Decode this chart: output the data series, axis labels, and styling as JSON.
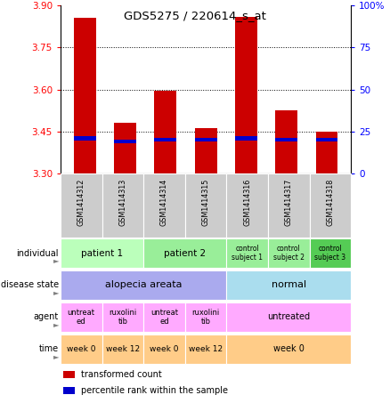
{
  "title": "GDS5275 / 220614_s_at",
  "samples": [
    "GSM1414312",
    "GSM1414313",
    "GSM1414314",
    "GSM1414315",
    "GSM1414316",
    "GSM1414317",
    "GSM1414318"
  ],
  "red_values": [
    3.855,
    3.48,
    3.595,
    3.462,
    3.86,
    3.525,
    3.45
  ],
  "blue_values": [
    21,
    19,
    20,
    20,
    21,
    20,
    20
  ],
  "ylim_left": [
    3.3,
    3.9
  ],
  "ylim_right": [
    0,
    100
  ],
  "yticks_left": [
    3.3,
    3.45,
    3.6,
    3.75,
    3.9
  ],
  "yticks_right": [
    0,
    25,
    50,
    75,
    100
  ],
  "ytick_labels_right": [
    "0",
    "25",
    "50",
    "75",
    "100%"
  ],
  "bar_width": 0.55,
  "bar_color": "#cc0000",
  "dot_color": "#0000cc",
  "bar_bottom": 3.3,
  "annotation_rows": [
    {
      "label": "individual",
      "cells": [
        {
          "text": "patient 1",
          "span": [
            0,
            1
          ],
          "color": "#bbffbb",
          "fontsize": 7.5
        },
        {
          "text": "patient 2",
          "span": [
            2,
            3
          ],
          "color": "#99ee99",
          "fontsize": 7.5
        },
        {
          "text": "control\nsubject 1",
          "span": [
            4,
            4
          ],
          "color": "#99ee99",
          "fontsize": 5.5
        },
        {
          "text": "control\nsubject 2",
          "span": [
            5,
            5
          ],
          "color": "#99ee99",
          "fontsize": 5.5
        },
        {
          "text": "control\nsubject 3",
          "span": [
            6,
            6
          ],
          "color": "#55cc55",
          "fontsize": 5.5
        }
      ]
    },
    {
      "label": "disease state",
      "cells": [
        {
          "text": "alopecia areata",
          "span": [
            0,
            3
          ],
          "color": "#aaaaee",
          "fontsize": 8
        },
        {
          "text": "normal",
          "span": [
            4,
            6
          ],
          "color": "#aaddee",
          "fontsize": 8
        }
      ]
    },
    {
      "label": "agent",
      "cells": [
        {
          "text": "untreat\ned",
          "span": [
            0,
            0
          ],
          "color": "#ffaaff",
          "fontsize": 6
        },
        {
          "text": "ruxolini\ntib",
          "span": [
            1,
            1
          ],
          "color": "#ffaaff",
          "fontsize": 6
        },
        {
          "text": "untreat\ned",
          "span": [
            2,
            2
          ],
          "color": "#ffaaff",
          "fontsize": 6
        },
        {
          "text": "ruxolini\ntib",
          "span": [
            3,
            3
          ],
          "color": "#ffaaff",
          "fontsize": 6
        },
        {
          "text": "untreated",
          "span": [
            4,
            6
          ],
          "color": "#ffaaff",
          "fontsize": 7
        }
      ]
    },
    {
      "label": "time",
      "cells": [
        {
          "text": "week 0",
          "span": [
            0,
            0
          ],
          "color": "#ffcc88",
          "fontsize": 6.5
        },
        {
          "text": "week 12",
          "span": [
            1,
            1
          ],
          "color": "#ffcc88",
          "fontsize": 6.5
        },
        {
          "text": "week 0",
          "span": [
            2,
            2
          ],
          "color": "#ffcc88",
          "fontsize": 6.5
        },
        {
          "text": "week 12",
          "span": [
            3,
            3
          ],
          "color": "#ffcc88",
          "fontsize": 6.5
        },
        {
          "text": "week 0",
          "span": [
            4,
            6
          ],
          "color": "#ffcc88",
          "fontsize": 7
        }
      ]
    }
  ],
  "legend_items": [
    {
      "color": "#cc0000",
      "label": "transformed count"
    },
    {
      "color": "#0000cc",
      "label": "percentile rank within the sample"
    }
  ],
  "bg_color": "#ffffff",
  "sample_label_bg": "#cccccc",
  "grid_yticks": [
    3.45,
    3.6,
    3.75
  ],
  "fig_width": 4.38,
  "fig_height": 4.53,
  "dpi": 100
}
